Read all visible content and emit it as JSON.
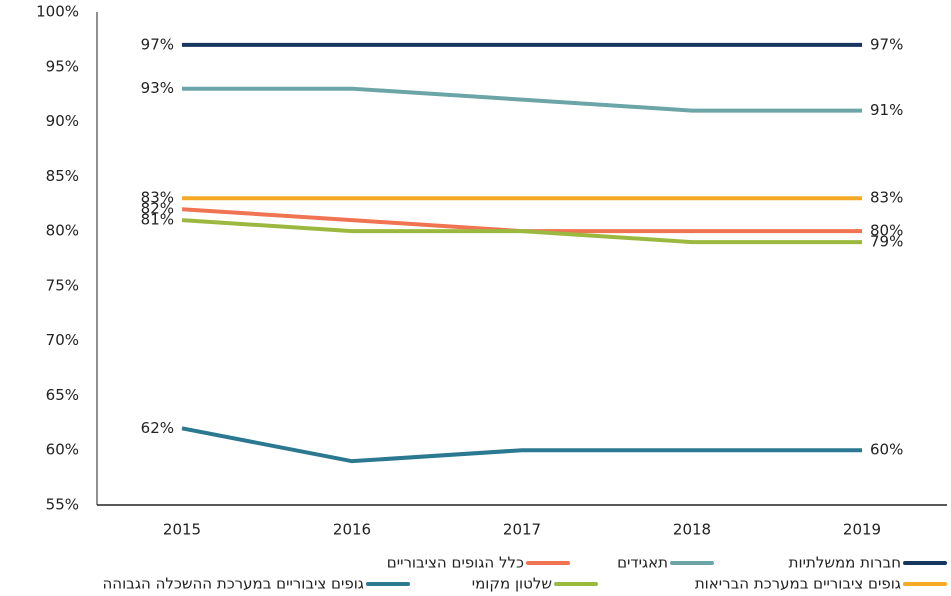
{
  "chart_data": {
    "type": "line",
    "categories": [
      "2015",
      "2016",
      "2017",
      "2018",
      "2019"
    ],
    "ylim": [
      55,
      100
    ],
    "yticks": [
      {
        "value": 55,
        "label": "55%"
      },
      {
        "value": 60,
        "label": "60%"
      },
      {
        "value": 65,
        "label": "65%"
      },
      {
        "value": 70,
        "label": "70%"
      },
      {
        "value": 75,
        "label": "75%"
      },
      {
        "value": 80,
        "label": "80%"
      },
      {
        "value": 85,
        "label": "85%"
      },
      {
        "value": 90,
        "label": "90%"
      },
      {
        "value": 95,
        "label": "95%"
      },
      {
        "value": 100,
        "label": "100%"
      }
    ],
    "grid": false,
    "series": [
      {
        "name": "חברות ממשלתיות",
        "color": "#17375e",
        "values": [
          97,
          97,
          97,
          97,
          97
        ],
        "value_labels": [
          "97%",
          null,
          null,
          null,
          "97%"
        ]
      },
      {
        "name": "תאגידים",
        "color": "#6ba5a8",
        "values": [
          93,
          93,
          92,
          91,
          91
        ],
        "value_labels": [
          "93%",
          null,
          null,
          null,
          "91%"
        ]
      },
      {
        "name": "כלל הגופים הציבוריים",
        "color": "#f07352",
        "values": [
          82,
          81,
          80,
          80,
          80
        ],
        "value_labels": [
          "82%",
          null,
          null,
          null,
          "80%"
        ]
      },
      {
        "name": "גופים ציבוריים במערכת הבריאות",
        "color": "#f5a927",
        "values": [
          83,
          83,
          83,
          83,
          83
        ],
        "value_labels": [
          "83%",
          null,
          null,
          null,
          "83%"
        ]
      },
      {
        "name": "שלטון מקומי",
        "color": "#9cb93f",
        "values": [
          81,
          80,
          80,
          79,
          79
        ],
        "value_labels": [
          "81%",
          null,
          null,
          null,
          "79%"
        ]
      },
      {
        "name": "גופים ציבוריים במערכת ההשכלה הגבוהה",
        "color": "#2b7891",
        "values": [
          62,
          59,
          60,
          60,
          60
        ],
        "value_labels": [
          "62%",
          null,
          null,
          null,
          "60%"
        ]
      }
    ]
  }
}
